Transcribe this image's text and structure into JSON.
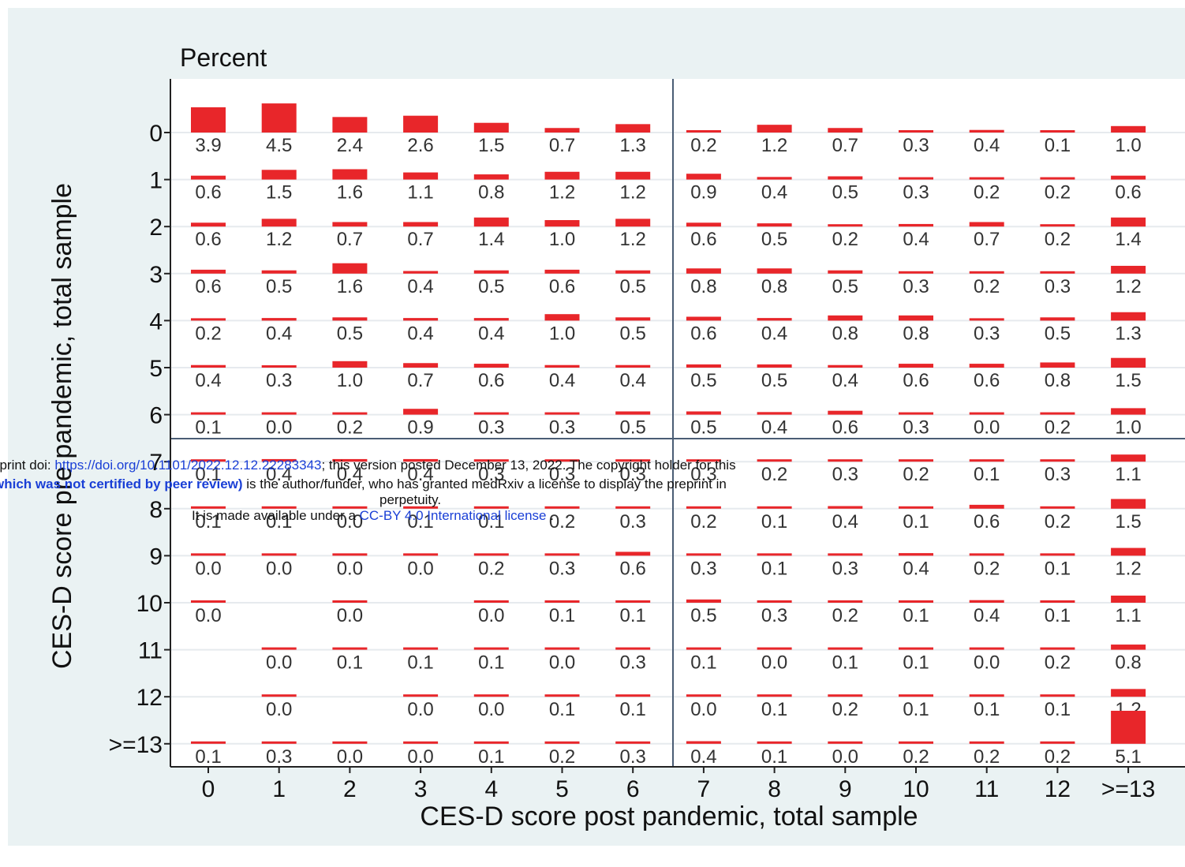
{
  "chart_data": {
    "type": "heatmap",
    "title": "Percent",
    "xlabel": "CES-D score post pandemic, total sample",
    "ylabel": "CES-D score pre pandemic, total sample",
    "x_categories": [
      "0",
      "1",
      "2",
      "3",
      "4",
      "5",
      "6",
      "7",
      "8",
      "9",
      "10",
      "11",
      "12",
      ">=13"
    ],
    "y_categories": [
      "0",
      "1",
      "2",
      "3",
      "4",
      "5",
      "6",
      "7",
      "8",
      "9",
      "10",
      "11",
      "12",
      ">=13"
    ],
    "cutoff_lines": {
      "x_between": [
        "6",
        "7"
      ],
      "y_between": [
        "6",
        "7"
      ]
    },
    "bar_color": "#e8262a",
    "cells": [
      [
        "3.9",
        "4.5",
        "2.4",
        "2.6",
        "1.5",
        "0.7",
        "1.3",
        "0.2",
        "1.2",
        "0.7",
        "0.3",
        "0.4",
        "0.1",
        "1.0"
      ],
      [
        "0.6",
        "1.5",
        "1.6",
        "1.1",
        "0.8",
        "1.2",
        "1.2",
        "0.9",
        "0.4",
        "0.5",
        "0.3",
        "0.2",
        "0.2",
        "0.6"
      ],
      [
        "0.6",
        "1.2",
        "0.7",
        "0.7",
        "1.4",
        "1.0",
        "1.2",
        "0.6",
        "0.5",
        "0.2",
        "0.4",
        "0.7",
        "0.2",
        "1.4"
      ],
      [
        "0.6",
        "0.5",
        "1.6",
        "0.4",
        "0.5",
        "0.6",
        "0.5",
        "0.8",
        "0.8",
        "0.5",
        "0.3",
        "0.2",
        "0.3",
        "1.2"
      ],
      [
        "0.2",
        "0.4",
        "0.5",
        "0.4",
        "0.4",
        "1.0",
        "0.5",
        "0.6",
        "0.4",
        "0.8",
        "0.8",
        "0.3",
        "0.5",
        "1.3"
      ],
      [
        "0.4",
        "0.3",
        "1.0",
        "0.7",
        "0.6",
        "0.4",
        "0.4",
        "0.5",
        "0.5",
        "0.4",
        "0.6",
        "0.6",
        "0.8",
        "1.5"
      ],
      [
        "0.1",
        "0.0",
        "0.2",
        "0.9",
        "0.3",
        "0.3",
        "0.5",
        "0.5",
        "0.4",
        "0.6",
        "0.3",
        "0.0",
        "0.2",
        "1.0"
      ],
      [
        "0.1",
        "0.4",
        "0.4",
        "0.4",
        "0.3",
        "0.3",
        "0.3",
        "0.3",
        "0.2",
        "0.3",
        "0.2",
        "0.1",
        "0.3",
        "1.1"
      ],
      [
        "0.1",
        "0.1",
        "0.0",
        "0.1",
        "0.1",
        "0.2",
        "0.3",
        "0.2",
        "0.1",
        "0.4",
        "0.1",
        "0.6",
        "0.2",
        "1.5"
      ],
      [
        "0.0",
        "0.0",
        "0.0",
        "0.0",
        "0.2",
        "0.3",
        "0.6",
        "0.3",
        "0.1",
        "0.3",
        "0.4",
        "0.2",
        "0.1",
        "1.2"
      ],
      [
        "0.0",
        "",
        "0.0",
        "",
        "0.0",
        "0.1",
        "0.1",
        "0.5",
        "0.3",
        "0.2",
        "0.1",
        "0.4",
        "0.1",
        "1.1"
      ],
      [
        "",
        "0.0",
        "0.1",
        "0.1",
        "0.1",
        "0.0",
        "0.3",
        "0.1",
        "0.0",
        "0.1",
        "0.1",
        "0.0",
        "0.2",
        "0.8"
      ],
      [
        "",
        "0.0",
        "",
        "0.0",
        "0.0",
        "0.1",
        "0.1",
        "0.0",
        "0.1",
        "0.2",
        "0.1",
        "0.1",
        "0.1",
        "1.2"
      ],
      [
        "0.1",
        "0.3",
        "0.0",
        "0.0",
        "0.1",
        "0.2",
        "0.3",
        "0.4",
        "0.1",
        "0.0",
        "0.2",
        "0.2",
        "0.2",
        "5.1"
      ]
    ]
  },
  "watermark": {
    "line1_pre": "eprint doi: ",
    "line1_link": "https://doi.org/10.1101/2022.12.12.22283343",
    "line1_post": "; this version posted December 13, 2022. The copyright holder for this",
    "line2_bold": "which was not certified by peer review)",
    "line2_post": " is the author/funder, who has granted medRxiv a license to display the preprint in",
    "line3": "perpetuity.",
    "line4_pre": "It is made available under a ",
    "line4_link": "CC-BY 4.0 International license",
    "line4_post": " ."
  }
}
